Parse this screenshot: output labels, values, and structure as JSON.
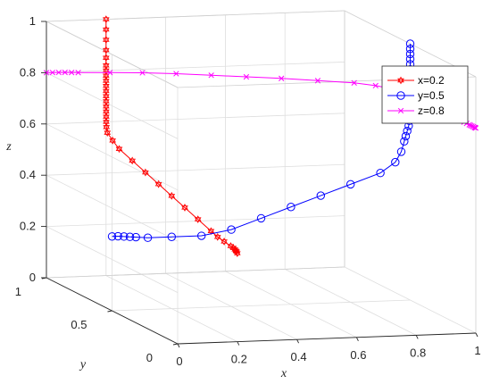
{
  "chart_data": {
    "type": "line3d",
    "xlabel": "x",
    "ylabel": "y",
    "zlabel": "z",
    "xlim": [
      0,
      1
    ],
    "ylim": [
      0,
      1
    ],
    "zlim": [
      0,
      1
    ],
    "x_ticks": [
      "0",
      "0.2",
      "0.4",
      "0.6",
      "0.8",
      "1"
    ],
    "y_ticks": [
      "0",
      "0.5",
      "1"
    ],
    "z_ticks": [
      "0",
      "0.2",
      "0.4",
      "0.6",
      "0.8",
      "1"
    ],
    "grid": true,
    "box": true,
    "legend_position": "top-right",
    "colors": {
      "x02": "#ff0000",
      "y05": "#0000ff",
      "z08": "#ff00ff",
      "grid": "#dedede",
      "axis": "#262626"
    },
    "series": [
      {
        "name": "x=0.2",
        "marker": "hexagram",
        "color": "#ff0000",
        "x": [
          0.2,
          0.2,
          0.2,
          0.2,
          0.2,
          0.2,
          0.2,
          0.2,
          0.2,
          0.2,
          0.2,
          0.2,
          0.2,
          0.2,
          0.2,
          0.2,
          0.2,
          0.2,
          0.2,
          0.2,
          0.2,
          0.2,
          0.2,
          0.2,
          0.2,
          0.2,
          0.2,
          0.2,
          0.2,
          0.2,
          0.2,
          0.2,
          0.2,
          0.2,
          0.2,
          0.2
        ],
        "y": [
          0.0,
          0.005,
          0.01,
          0.018,
          0.03,
          0.05,
          0.1,
          0.15,
          0.2,
          0.3,
          0.4,
          0.5,
          0.6,
          0.7,
          0.8,
          0.9,
          0.95,
          0.99,
          0.997,
          0.999,
          0.999,
          0.9993,
          0.9995,
          0.9996,
          0.9997,
          0.9998,
          0.9999,
          1.0,
          1.0,
          1.0,
          1.0,
          1.0,
          1.0,
          1.0,
          1.0,
          1.0
        ],
        "z": [
          0.345,
          0.35,
          0.352,
          0.355,
          0.358,
          0.36,
          0.365,
          0.37,
          0.38,
          0.4,
          0.42,
          0.44,
          0.46,
          0.48,
          0.5,
          0.52,
          0.54,
          0.56,
          0.58,
          0.6,
          0.62,
          0.64,
          0.66,
          0.68,
          0.7,
          0.72,
          0.74,
          0.76,
          0.78,
          0.8,
          0.82,
          0.85,
          0.88,
          0.92,
          0.96,
          1.0
        ]
      },
      {
        "name": "y=0.5",
        "marker": "circle",
        "color": "#0000ff",
        "x": [
          0.0,
          0.02,
          0.04,
          0.06,
          0.08,
          0.12,
          0.2,
          0.3,
          0.4,
          0.5,
          0.6,
          0.7,
          0.8,
          0.9,
          0.95,
          0.97,
          0.98,
          0.985,
          0.99,
          0.995,
          0.997,
          0.998,
          0.999,
          0.999,
          1.0,
          1.0,
          1.0,
          1.0,
          1.0,
          1.0,
          1.0,
          1.0,
          1.0,
          1.0,
          1.0,
          1.0
        ],
        "y": [
          0.5,
          0.5,
          0.5,
          0.5,
          0.5,
          0.5,
          0.5,
          0.5,
          0.5,
          0.5,
          0.5,
          0.5,
          0.5,
          0.5,
          0.5,
          0.5,
          0.5,
          0.5,
          0.5,
          0.5,
          0.5,
          0.5,
          0.5,
          0.5,
          0.5,
          0.5,
          0.5,
          0.5,
          0.5,
          0.5,
          0.5,
          0.5,
          0.5,
          0.5,
          0.5,
          0.5
        ],
        "z": [
          0.29,
          0.29,
          0.288,
          0.286,
          0.284,
          0.28,
          0.28,
          0.28,
          0.3,
          0.34,
          0.38,
          0.42,
          0.46,
          0.5,
          0.54,
          0.58,
          0.62,
          0.64,
          0.66,
          0.68,
          0.7,
          0.72,
          0.74,
          0.76,
          0.78,
          0.8,
          0.82,
          0.84,
          0.86,
          0.88,
          0.9,
          0.92,
          0.94,
          0.96,
          0.98,
          1.0
        ]
      },
      {
        "name": "z=0.8",
        "marker": "x",
        "color": "#ff00ff",
        "x": [
          0.0,
          0.02,
          0.04,
          0.06,
          0.08,
          0.1,
          0.2,
          0.3,
          0.4,
          0.5,
          0.6,
          0.7,
          0.8,
          0.9,
          0.95,
          0.98,
          0.99,
          0.995,
          0.997,
          0.998,
          0.999,
          0.999,
          1.0,
          1.0,
          1.0,
          1.0,
          1.0,
          1.0,
          1.0,
          1.0,
          1.0,
          1.0,
          1.0,
          1.0,
          1.0,
          1.0
        ],
        "y": [
          1.0,
          0.999,
          0.997,
          0.995,
          0.99,
          0.985,
          0.97,
          0.95,
          0.92,
          0.88,
          0.84,
          0.8,
          0.75,
          0.7,
          0.65,
          0.6,
          0.55,
          0.5,
          0.45,
          0.4,
          0.35,
          0.3,
          0.26,
          0.22,
          0.18,
          0.15,
          0.12,
          0.09,
          0.07,
          0.05,
          0.04,
          0.03,
          0.02,
          0.01,
          0.005,
          0.0
        ],
        "z": [
          0.8,
          0.8,
          0.8,
          0.8,
          0.8,
          0.8,
          0.8,
          0.8,
          0.8,
          0.8,
          0.8,
          0.8,
          0.8,
          0.8,
          0.8,
          0.8,
          0.8,
          0.8,
          0.8,
          0.8,
          0.8,
          0.8,
          0.8,
          0.8,
          0.8,
          0.8,
          0.8,
          0.8,
          0.8,
          0.8,
          0.8,
          0.8,
          0.8,
          0.8,
          0.8,
          0.8
        ]
      }
    ]
  }
}
